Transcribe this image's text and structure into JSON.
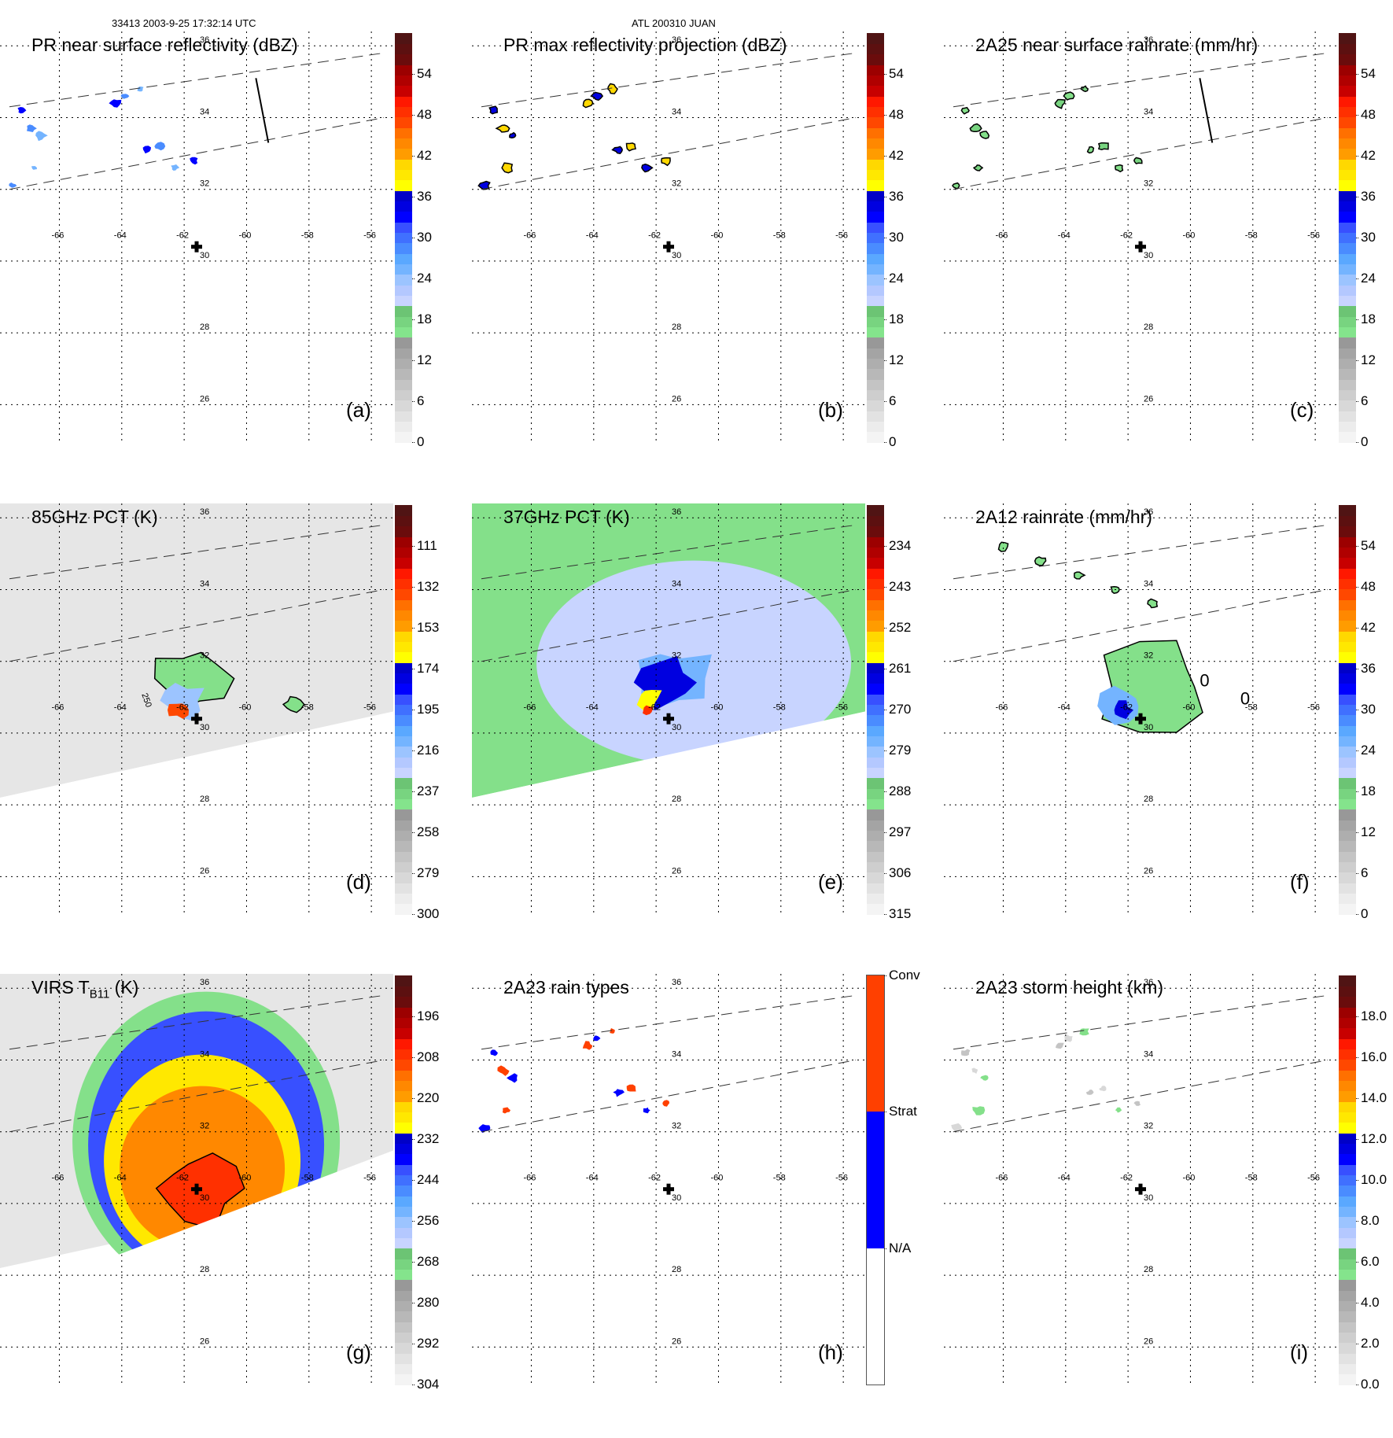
{
  "header": {
    "left_title": "33413 2003-9-25 17:32:14 UTC",
    "center_title": "ATL 200310 JUAN"
  },
  "chart_data": [
    {
      "id": "a",
      "type": "heatmap",
      "title": "PR near surface reflectivity (dBZ)",
      "panel_label": "(a)",
      "colorbar": {
        "label": "dBZ",
        "range": [
          0,
          60
        ],
        "ticks": [
          "0",
          "6",
          "12",
          "18",
          "24",
          "30",
          "36",
          "42",
          "48",
          "54"
        ],
        "tick_values": [
          0,
          6,
          12,
          18,
          24,
          30,
          36,
          42,
          48,
          54
        ]
      },
      "swath": "PR",
      "show_cross_section_line": true,
      "features": "scattered small echoes 20-36 dBZ along PR swath near 32.5-35N, 63-67W"
    },
    {
      "id": "b",
      "type": "heatmap",
      "title": "PR max reflectivity projection (dBZ)",
      "panel_label": "(b)",
      "colorbar": {
        "label": "dBZ",
        "range": [
          0,
          60
        ],
        "ticks": [
          "0",
          "6",
          "12",
          "18",
          "24",
          "30",
          "36",
          "42",
          "48",
          "54"
        ],
        "tick_values": [
          0,
          6,
          12,
          18,
          24,
          30,
          36,
          42,
          48,
          54
        ]
      },
      "swath": "PR",
      "show_cross_section_line": false,
      "features": "scattered contoured cells up to ~38 dBZ"
    },
    {
      "id": "c",
      "type": "heatmap",
      "title": "2A25 near surface rainrate (mm/hr)",
      "panel_label": "(c)",
      "colorbar": {
        "label": "mm/hr",
        "range": [
          0,
          60
        ],
        "ticks": [
          "0",
          "6",
          "12",
          "18",
          "24",
          "30",
          "36",
          "42",
          "48",
          "54"
        ],
        "tick_values": [
          0,
          6,
          12,
          18,
          24,
          30,
          36,
          42,
          48,
          54
        ]
      },
      "swath": "PR",
      "show_cross_section_line": true,
      "features": "light rain < 6 mm/hr in scattered cells"
    },
    {
      "id": "d",
      "type": "heatmap",
      "title": "85GHz PCT (K)",
      "panel_label": "(d)",
      "colorbar": {
        "label": "K",
        "range": [
          90,
          300
        ],
        "ticks": [
          "111",
          "132",
          "153",
          "174",
          "195",
          "216",
          "237",
          "258",
          "279",
          "300"
        ],
        "tick_values": [
          111,
          132,
          153,
          174,
          195,
          216,
          237,
          258,
          279,
          300
        ],
        "reversed": true
      },
      "swath": "TMI",
      "contour_label": "250",
      "features": "cold region 130-240 K centered near 31N 62W"
    },
    {
      "id": "e",
      "type": "heatmap",
      "title": "37GHz PCT (K)",
      "panel_label": "(e)",
      "colorbar": {
        "label": "K",
        "range": [
          225,
          315
        ],
        "ticks": [
          "234",
          "243",
          "252",
          "261",
          "270",
          "279",
          "288",
          "297",
          "306",
          "315"
        ],
        "tick_values": [
          234,
          243,
          252,
          261,
          270,
          279,
          288,
          297,
          306,
          315
        ],
        "reversed": true
      },
      "swath": "TMI",
      "features": "min ~245 K near 30.5N 62W; broad 270-290 K field"
    },
    {
      "id": "f",
      "type": "heatmap",
      "title": "2A12 rainrate (mm/hr)",
      "panel_label": "(f)",
      "colorbar": {
        "label": "mm/hr",
        "range": [
          0,
          60
        ],
        "ticks": [
          "0",
          "6",
          "12",
          "18",
          "24",
          "30",
          "36",
          "42",
          "48",
          "54"
        ],
        "tick_values": [
          0,
          6,
          12,
          18,
          24,
          30,
          36,
          42,
          48,
          54
        ]
      },
      "swath": "TMI",
      "contour_labels": [
        "0",
        "0"
      ],
      "features": "rain area 0-25 mm/hr, max near 31N 62W"
    },
    {
      "id": "g",
      "type": "heatmap",
      "title": "VIRS T",
      "title_sub": "B11",
      "title_suffix": " (K)",
      "panel_label": "(g)",
      "colorbar": {
        "label": "K",
        "range": [
          184,
          304
        ],
        "ticks": [
          "196",
          "208",
          "220",
          "232",
          "244",
          "256",
          "268",
          "280",
          "292",
          "304"
        ],
        "tick_values": [
          196,
          208,
          220,
          232,
          244,
          256,
          268,
          280,
          292,
          304
        ],
        "reversed": true
      },
      "swath": "VIRS",
      "features": "cold cloud shield 200-235 K centered near 31N 61.5W"
    },
    {
      "id": "h",
      "type": "heatmap",
      "title": "2A23 rain types",
      "panel_label": "(h)",
      "colorbar": {
        "categorical": true,
        "categories": [
          "N/A",
          "Strat",
          "Conv"
        ],
        "colors": [
          "#ffffff",
          "#0000ff",
          "#ff4000"
        ]
      },
      "swath": "PR",
      "features": "mixed convective and stratiform pixels in scattered cells"
    },
    {
      "id": "i",
      "type": "heatmap",
      "title": "2A23 storm height (km)",
      "panel_label": "(i)",
      "colorbar": {
        "label": "km",
        "range": [
          0,
          20
        ],
        "ticks": [
          "0.0",
          "2.0",
          "4.0",
          "6.0",
          "8.0",
          "10.0",
          "12.0",
          "14.0",
          "16.0",
          "18.0"
        ],
        "tick_values": [
          0,
          2,
          4,
          6,
          8,
          10,
          12,
          14,
          16,
          18
        ]
      },
      "swath": "PR",
      "features": "storm heights mostly 2-5 km"
    }
  ],
  "map": {
    "lon_ticks": [
      "-66",
      "-64",
      "-62",
      "-60",
      "-58",
      "-56"
    ],
    "lon_values": [
      -66,
      -64,
      -62,
      -60,
      -58,
      -56
    ],
    "lat_ticks": [
      "36",
      "34",
      "32",
      "30",
      "28",
      "26"
    ],
    "lat_values": [
      36,
      34,
      32,
      30,
      28,
      26
    ],
    "lon_range": [
      -67.6,
      -55.6
    ],
    "lat_range": [
      25,
      36.4
    ],
    "storm_center": {
      "lon": -61.6,
      "lat": 30.4,
      "marker": "cross"
    },
    "grid": true
  },
  "colormaps": {
    "standard": [
      "#f4f4f4",
      "#ececec",
      "#e2e2e2",
      "#d8d8d8",
      "#cecece",
      "#c4c4c4",
      "#b8b8b8",
      "#aeaeae",
      "#a4a4a4",
      "#989898",
      "#84e48c",
      "#78d480",
      "#6cc474",
      "#c8d4ff",
      "#b4c8ff",
      "#9cc4ff",
      "#74b4ff",
      "#5aa8ff",
      "#4a8cff",
      "#4070ff",
      "#3850ff",
      "#0000ff",
      "#0000e0",
      "#0000c8",
      "#ffff00",
      "#ffe800",
      "#ffd800",
      "#ff9c00",
      "#ff8800",
      "#ff7000",
      "#ff4800",
      "#ff3000",
      "#ff1800",
      "#c80000",
      "#b00000",
      "#9c0000",
      "#6a0c0c",
      "#5c1010",
      "#501414"
    ]
  }
}
